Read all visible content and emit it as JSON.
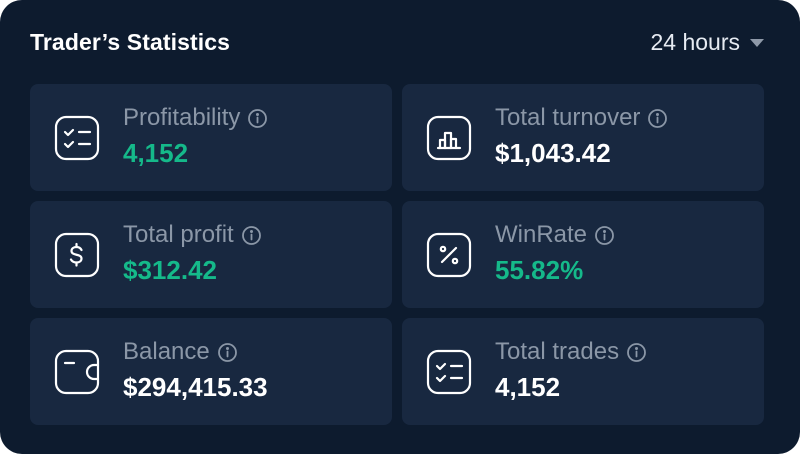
{
  "header": {
    "title": "Trader’s Statistics",
    "period": "24 hours"
  },
  "colors": {
    "panel_bg": "#0d1b2e",
    "card_bg": "#182840",
    "positive": "#15b98a",
    "label": "#8b97a7",
    "value": "#ffffff"
  },
  "stats": [
    {
      "label": "Profitability",
      "value": "4,152",
      "icon": "checklist-icon"
    },
    {
      "label": "Total turnover",
      "value": "$1,043.42",
      "icon": "bar-chart-icon"
    },
    {
      "label": "Total profit",
      "value": "$312.42",
      "icon": "dollar-icon"
    },
    {
      "label": "WinRate",
      "value": "55.82%",
      "icon": "percent-icon"
    },
    {
      "label": "Balance",
      "value": "$294,415.33",
      "icon": "wallet-icon"
    },
    {
      "label": "Total trades",
      "value": "4,152",
      "icon": "checklist-icon"
    }
  ]
}
